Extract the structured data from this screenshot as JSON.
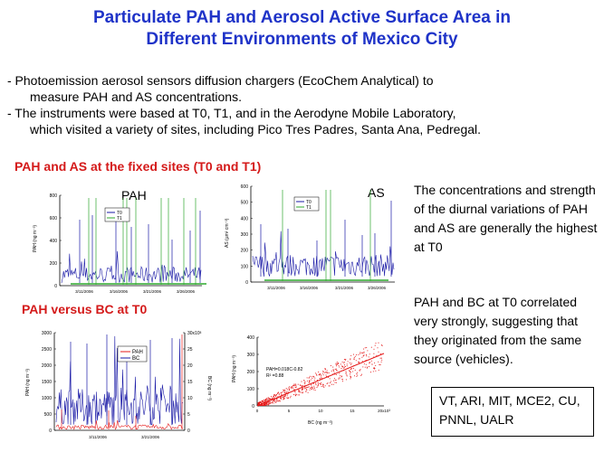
{
  "title": {
    "line1": "Particulate PAH and Aerosol Active Surface Area in",
    "line2": "Different Environments of Mexico City"
  },
  "bullets": [
    {
      "line1": "-  Photoemission aerosol sensors diffusion chargers (EcoChem Analytical) to",
      "line2": "measure PAH and AS concentrations."
    },
    {
      "line1": "- The instruments were based at T0, T1, and in the Aerodyne Mobile Laboratory,",
      "line2": "which visited a variety of sites, including Pico Tres Padres, Santa Ana, Pedregal."
    }
  ],
  "sections": {
    "fixed_sites": "PAH and AS at the fixed sites (T0 and T1)",
    "versus_bc": "PAH versus BC at T0"
  },
  "side_text": {
    "para1": "The concentrations and strength of the diurnal variations of PAH and AS are generally the highest at T0",
    "para2": "PAH and BC at T0 correlated very strongly, suggesting that they originated from the same source (vehicles)."
  },
  "credits": "VT, ARI, MIT, MCE2, CU, PNNL, UALR",
  "colors": {
    "title": "#1f33c8",
    "section": "#d41a1a",
    "t0": "#1a1aa6",
    "t1": "#2ea82e",
    "pah": "#e51a1a",
    "bc": "#1a1aa6",
    "fit": "#e51a1a"
  },
  "chart_data": [
    {
      "type": "line",
      "label": "PAH",
      "ylabel": "PAH (ng m⁻³)",
      "yticks": [
        "0",
        "200",
        "400",
        "600",
        "800"
      ],
      "xticks": [
        "3/11/2006",
        "3/16/2006",
        "3/21/2006",
        "3/26/2006"
      ],
      "ylim": [
        0,
        800
      ],
      "legend": [
        "T0",
        "T1"
      ]
    },
    {
      "type": "line",
      "label": "AS",
      "ylabel": "AS (µm² cm⁻³)",
      "yticks": [
        "0",
        "100",
        "200",
        "300",
        "400",
        "500",
        "600"
      ],
      "xticks": [
        "3/11/2006",
        "3/16/2006",
        "3/21/2006",
        "3/26/2006"
      ],
      "ylim": [
        0,
        600
      ],
      "legend": [
        "T0",
        "T1"
      ]
    },
    {
      "type": "line",
      "yticks_left": [
        "0",
        "500",
        "1000",
        "1500",
        "2000",
        "2500",
        "3000"
      ],
      "yticks_right": [
        "0",
        "5",
        "10",
        "15",
        "20",
        "25",
        "30x10³"
      ],
      "ylabel_left": "PAH (ng m⁻³)",
      "ylabel_right": "BC (ng m⁻³)",
      "xticks": [
        "3/11/2006",
        "3/21/2006"
      ],
      "legend": [
        "PAH",
        "BC"
      ]
    },
    {
      "type": "scatter",
      "xlabel": "BC (ng m⁻³)",
      "ylabel": "PAH (ng m⁻³)",
      "xticks": [
        "0",
        "5",
        "10",
        "15",
        "20x10³"
      ],
      "yticks": [
        "0",
        "100",
        "200",
        "300",
        "400"
      ],
      "fit": "PAH=0.018C-0.82",
      "r2": "R² =0.88"
    }
  ]
}
